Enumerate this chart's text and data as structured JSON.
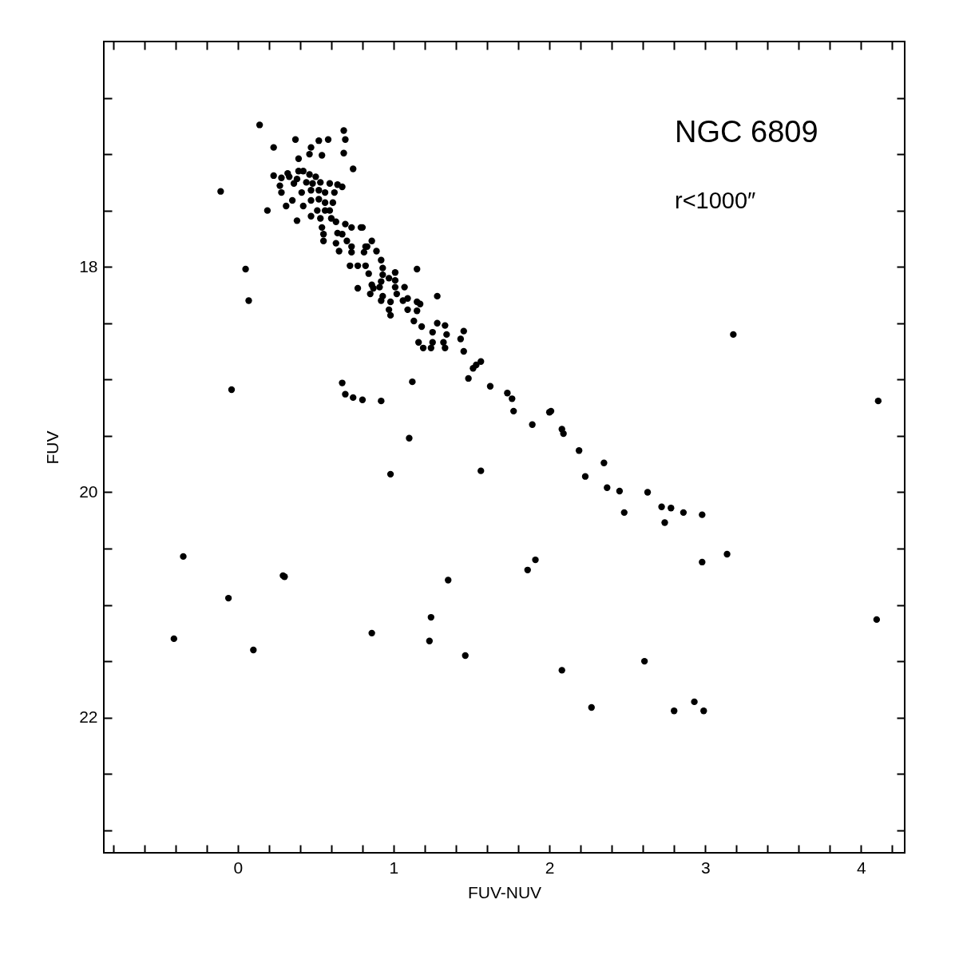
{
  "chart_data": {
    "type": "scatter",
    "xlabel": "FUV-NUV",
    "ylabel": "FUV",
    "annotations": [
      "NGC 6809",
      "r<1000″"
    ],
    "xlim": [
      -0.86,
      4.28
    ],
    "ylim": [
      23.2,
      16
    ],
    "xticks": [
      {
        "value": -0.8,
        "label": null
      },
      {
        "value": -0.6,
        "label": null
      },
      {
        "value": -0.4,
        "label": null
      },
      {
        "value": -0.2,
        "label": null
      },
      0,
      {
        "value": 0.2,
        "label": null
      },
      {
        "value": 0.4,
        "label": null
      },
      {
        "value": 0.6,
        "label": null
      },
      {
        "value": 0.8,
        "label": null
      },
      1,
      {
        "value": 1.2,
        "label": null
      },
      {
        "value": 1.4,
        "label": null
      },
      {
        "value": 1.6,
        "label": null
      },
      {
        "value": 1.8,
        "label": null
      },
      2,
      {
        "value": 2.2,
        "label": null
      },
      {
        "value": 2.4,
        "label": null
      },
      {
        "value": 2.6,
        "label": null
      },
      {
        "value": 2.8,
        "label": null
      },
      3,
      {
        "value": 3.2,
        "label": null
      },
      {
        "value": 3.4,
        "label": null
      },
      {
        "value": 3.6,
        "label": null
      },
      {
        "value": 3.8,
        "label": null
      },
      4,
      {
        "value": 4.2,
        "label": null
      }
    ],
    "yticks": [
      {
        "value": 16.5,
        "label": null
      },
      {
        "value": 17,
        "label": null
      },
      {
        "value": 17.5,
        "label": null
      },
      18,
      {
        "value": 18.5,
        "label": null
      },
      {
        "value": 19,
        "label": null
      },
      {
        "value": 19.5,
        "label": null
      },
      20,
      {
        "value": 20.5,
        "label": null
      },
      {
        "value": 21,
        "label": null
      },
      {
        "value": 21.5,
        "label": null
      },
      22,
      {
        "value": 22.5,
        "label": null
      },
      {
        "value": 23,
        "label": null
      }
    ],
    "grid": false,
    "marker": "circle",
    "series": [
      {
        "color": "#000000",
        "x": [
          0.14,
          0.23,
          0.37,
          0.47,
          0.46,
          0.52,
          0.58,
          0.54,
          0.39,
          0.68,
          0.69,
          0.68,
          0.74,
          -0.11,
          0.19,
          0.38,
          0.31,
          0.35,
          0.23,
          0.28,
          0.32,
          0.33,
          0.39,
          0.42,
          0.46,
          0.5,
          0.27,
          0.28,
          0.36,
          0.38,
          0.44,
          0.48,
          0.53,
          0.59,
          0.64,
          0.67,
          0.41,
          0.47,
          0.52,
          0.56,
          0.62,
          0.42,
          0.47,
          0.52,
          0.56,
          0.61,
          0.51,
          0.56,
          0.59,
          0.47,
          0.53,
          0.6,
          0.54,
          0.63,
          0.55,
          0.64,
          0.69,
          0.55,
          0.63,
          0.67,
          0.73,
          0.79,
          0.7,
          0.73,
          0.65,
          0.73,
          0.82,
          0.86,
          0.8,
          0.83,
          0.81,
          0.89,
          0.92,
          0.72,
          0.77,
          0.82,
          0.84,
          0.93,
          0.93,
          1.01,
          0.97,
          1.01,
          0.92,
          0.86,
          0.87,
          0.77,
          0.85,
          0.91,
          0.93,
          1.01,
          1.02,
          1.07,
          0.92,
          0.98,
          0.97,
          0.98,
          1.06,
          1.09,
          1.09,
          1.15,
          1.17,
          1.15,
          1.28,
          1.13,
          1.18,
          1.25,
          1.28,
          1.33,
          1.34,
          1.25,
          1.16,
          1.19,
          1.24,
          1.32,
          1.33,
          1.45,
          1.43,
          1.45,
          1.56,
          1.51,
          0.05,
          0.07,
          -0.04,
          1.15,
          3.18,
          4.11,
          0.67,
          0.69,
          0.74,
          0.8,
          0.92,
          1.12,
          1.1,
          0.98,
          1.56,
          1.53,
          1.48,
          1.62,
          1.73,
          1.76,
          1.77,
          1.89,
          2.0,
          2.01,
          2.08,
          2.09,
          2.19,
          2.35,
          2.23,
          2.37,
          2.45,
          2.63,
          2.48,
          2.72,
          2.78,
          2.86,
          2.98,
          2.74,
          3.14,
          2.98,
          -0.35,
          0.29,
          0.3,
          -0.06,
          -0.41,
          0.1,
          0.86,
          1.24,
          1.23,
          1.35,
          1.46,
          1.86,
          1.91,
          2.08,
          2.27,
          2.61,
          2.8,
          2.93,
          2.99,
          4.1
        ],
        "values": [
          16.74,
          16.94,
          16.87,
          16.94,
          17.0,
          16.88,
          16.87,
          17.01,
          17.04,
          16.79,
          16.87,
          16.99,
          17.13,
          17.33,
          17.5,
          17.59,
          17.46,
          17.41,
          17.19,
          17.21,
          17.17,
          17.2,
          17.15,
          17.15,
          17.18,
          17.2,
          17.28,
          17.34,
          17.26,
          17.22,
          17.25,
          17.26,
          17.25,
          17.26,
          17.27,
          17.29,
          17.34,
          17.32,
          17.32,
          17.34,
          17.34,
          17.46,
          17.41,
          17.4,
          17.43,
          17.43,
          17.5,
          17.5,
          17.5,
          17.55,
          17.57,
          17.57,
          17.65,
          17.6,
          17.71,
          17.7,
          17.62,
          17.77,
          17.79,
          17.71,
          17.65,
          17.65,
          17.77,
          17.82,
          17.86,
          17.87,
          17.82,
          17.77,
          17.65,
          17.82,
          17.87,
          17.86,
          17.94,
          17.99,
          17.99,
          17.99,
          18.06,
          18.01,
          18.07,
          18.05,
          18.1,
          18.12,
          18.13,
          18.16,
          18.19,
          18.19,
          18.24,
          18.18,
          18.26,
          18.18,
          18.24,
          18.18,
          18.3,
          18.31,
          18.38,
          18.43,
          18.3,
          18.28,
          18.38,
          18.31,
          18.33,
          18.39,
          18.26,
          18.48,
          18.53,
          18.58,
          18.5,
          18.52,
          18.6,
          18.67,
          18.67,
          18.72,
          18.72,
          18.67,
          18.72,
          18.57,
          18.64,
          18.75,
          18.84,
          18.9,
          18.02,
          18.3,
          19.09,
          18.02,
          18.6,
          19.19,
          19.03,
          19.13,
          19.16,
          19.18,
          19.19,
          19.02,
          19.52,
          19.84,
          19.81,
          18.87,
          18.99,
          19.06,
          19.12,
          19.17,
          19.28,
          19.4,
          19.29,
          19.28,
          19.44,
          19.48,
          19.63,
          19.74,
          19.86,
          19.96,
          19.99,
          20.0,
          20.18,
          20.13,
          20.14,
          20.18,
          20.2,
          20.27,
          20.55,
          20.62,
          20.57,
          20.74,
          20.75,
          20.94,
          21.3,
          21.4,
          21.25,
          21.11,
          21.32,
          20.78,
          21.45,
          20.69,
          20.6,
          21.58,
          21.91,
          21.5,
          21.94,
          21.86,
          21.94,
          21.13
        ]
      }
    ]
  }
}
